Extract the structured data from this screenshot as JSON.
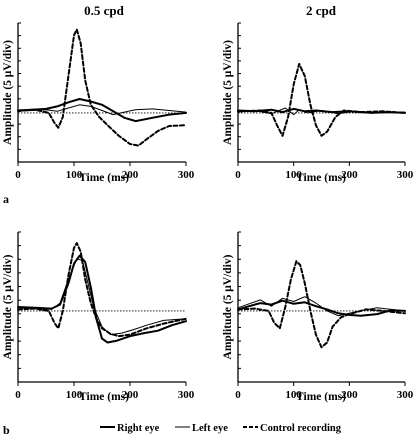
{
  "figure": {
    "panel_letters": [
      "a",
      "b"
    ],
    "legend": [
      {
        "label": "Right eye",
        "color": "#000000",
        "dash": "solid",
        "weight": "thick"
      },
      {
        "label": "Left eye",
        "color": "#000000",
        "dash": "solid",
        "weight": "thin"
      },
      {
        "label": "Control recording",
        "color": "#000000",
        "dash": "dashed",
        "weight": "thick"
      }
    ]
  },
  "chart_data": [
    {
      "type": "line",
      "panel": "a",
      "title": "0.5 cpd",
      "xlabel": "Time (ms)",
      "ylabel": "Amplitude (5 μV/div)",
      "xlim": [
        0,
        300
      ],
      "ylim": [
        -6,
        11
      ],
      "xticks": [
        0,
        100,
        200,
        300
      ],
      "baseline": 0,
      "series": [
        {
          "name": "Right eye",
          "x": [
            0,
            25,
            50,
            70,
            90,
            110,
            130,
            150,
            170,
            190,
            210,
            240,
            270,
            300
          ],
          "y": [
            0.3,
            0.4,
            0.5,
            0.8,
            1.3,
            1.7,
            1.4,
            1.0,
            0.2,
            -0.6,
            -1.0,
            -0.6,
            -0.2,
            0.0
          ]
        },
        {
          "name": "Left eye",
          "x": [
            0,
            25,
            50,
            70,
            90,
            110,
            130,
            150,
            170,
            190,
            210,
            240,
            270,
            300
          ],
          "y": [
            0.2,
            0.3,
            0.4,
            0.2,
            0.6,
            1.0,
            0.8,
            0.3,
            -0.2,
            0.1,
            0.4,
            0.5,
            0.3,
            0.1
          ]
        },
        {
          "name": "Control recording",
          "x": [
            0,
            30,
            55,
            65,
            72,
            80,
            90,
            100,
            105,
            112,
            120,
            130,
            145,
            160,
            180,
            200,
            215,
            230,
            250,
            270,
            300
          ],
          "y": [
            0.3,
            0.4,
            0.0,
            -1.2,
            -1.8,
            -0.5,
            4.5,
            9.5,
            10.2,
            8.5,
            4.0,
            1.0,
            -0.5,
            -1.5,
            -2.8,
            -3.8,
            -4.0,
            -3.2,
            -2.2,
            -1.6,
            -1.5
          ]
        }
      ]
    },
    {
      "type": "line",
      "panel": "a",
      "title": "2 cpd",
      "xlabel": "Time (ms)",
      "ylabel": "Amplitude (5 μV/div)",
      "xlim": [
        0,
        300
      ],
      "ylim": [
        -6,
        11
      ],
      "xticks": [
        0,
        100,
        200,
        300
      ],
      "baseline": 0,
      "series": [
        {
          "name": "Right eye",
          "x": [
            0,
            30,
            60,
            80,
            100,
            120,
            140,
            170,
            200,
            240,
            270,
            300
          ],
          "y": [
            0.3,
            0.2,
            0.4,
            0.1,
            0.5,
            0.2,
            0.3,
            0.1,
            0.2,
            0.0,
            0.1,
            0.0
          ]
        },
        {
          "name": "Left eye",
          "x": [
            0,
            30,
            60,
            85,
            100,
            110,
            125,
            150,
            180,
            210,
            250,
            300
          ],
          "y": [
            0.1,
            0.3,
            -0.1,
            0.6,
            -0.2,
            0.4,
            0.0,
            0.3,
            -0.1,
            0.2,
            0.0,
            0.1
          ]
        },
        {
          "name": "Control recording",
          "x": [
            0,
            40,
            60,
            70,
            80,
            90,
            100,
            110,
            120,
            130,
            140,
            150,
            160,
            175,
            190,
            220,
            260,
            300
          ],
          "y": [
            0.2,
            0.3,
            0.0,
            -1.5,
            -2.8,
            -0.5,
            3.5,
            6.0,
            4.5,
            1.0,
            -1.5,
            -2.8,
            -2.3,
            -0.5,
            0.3,
            0.1,
            0.2,
            0.0
          ]
        }
      ]
    },
    {
      "type": "line",
      "panel": "b",
      "title": "",
      "xlabel": "Time (ms)",
      "ylabel": "Amplitude (5 μV/div)",
      "xlim": [
        0,
        300
      ],
      "ylim": [
        -9,
        10
      ],
      "xticks": [
        0,
        100,
        200,
        300
      ],
      "baseline": 0,
      "series": [
        {
          "name": "Right eye",
          "x": [
            0,
            30,
            60,
            75,
            90,
            100,
            110,
            120,
            130,
            140,
            150,
            160,
            175,
            200,
            225,
            250,
            275,
            300
          ],
          "y": [
            0.5,
            0.4,
            0.3,
            0.8,
            3.5,
            6.0,
            7.0,
            6.2,
            3.0,
            -1.0,
            -3.5,
            -4.0,
            -3.8,
            -3.2,
            -2.8,
            -2.5,
            -1.8,
            -1.3
          ]
        },
        {
          "name": "Left eye",
          "x": [
            0,
            30,
            60,
            75,
            90,
            105,
            115,
            125,
            135,
            150,
            165,
            185,
            205,
            230,
            260,
            300
          ],
          "y": [
            0.4,
            0.3,
            0.2,
            1.0,
            4.0,
            6.6,
            6.4,
            3.5,
            0.5,
            -2.0,
            -3.0,
            -2.8,
            -2.4,
            -1.8,
            -1.2,
            -1.0
          ]
        },
        {
          "name": "Control recording",
          "x": [
            0,
            30,
            55,
            65,
            72,
            80,
            90,
            100,
            105,
            112,
            120,
            130,
            140,
            150,
            165,
            180,
            200,
            230,
            260,
            300
          ],
          "y": [
            0.2,
            0.3,
            0.0,
            -1.5,
            -2.2,
            0.0,
            4.5,
            8.0,
            8.6,
            7.5,
            4.0,
            1.0,
            -1.0,
            -2.2,
            -2.9,
            -3.2,
            -3.0,
            -2.2,
            -1.6,
            -1.0
          ]
        }
      ]
    },
    {
      "type": "line",
      "panel": "b",
      "title": "",
      "xlabel": "Time (ms)",
      "ylabel": "Amplitude (5 μV/div)",
      "xlim": [
        0,
        300
      ],
      "ylim": [
        -9,
        10
      ],
      "xticks": [
        0,
        100,
        200,
        300
      ],
      "baseline": 0,
      "series": [
        {
          "name": "Right eye",
          "x": [
            0,
            20,
            40,
            60,
            80,
            100,
            120,
            140,
            160,
            180,
            200,
            220,
            250,
            275,
            300
          ],
          "y": [
            0.2,
            0.6,
            1.0,
            0.8,
            1.3,
            0.9,
            1.1,
            0.6,
            0.2,
            -0.3,
            -0.5,
            -0.6,
            -0.4,
            0.1,
            0.0
          ]
        },
        {
          "name": "Left eye",
          "x": [
            0,
            20,
            40,
            60,
            80,
            100,
            120,
            140,
            160,
            180,
            200,
            220,
            250,
            275,
            300
          ],
          "y": [
            0.4,
            0.9,
            1.4,
            0.6,
            1.6,
            1.2,
            1.8,
            1.0,
            0.0,
            -0.6,
            -0.3,
            0.0,
            0.4,
            0.2,
            0.0
          ]
        },
        {
          "name": "Control recording",
          "x": [
            0,
            30,
            55,
            65,
            75,
            85,
            95,
            105,
            112,
            120,
            130,
            140,
            150,
            160,
            170,
            185,
            200,
            230,
            260,
            300
          ],
          "y": [
            0.2,
            0.3,
            0.0,
            -1.5,
            -2.2,
            0.5,
            4.0,
            6.3,
            5.8,
            3.5,
            0.0,
            -3.0,
            -4.6,
            -4.0,
            -2.0,
            -0.8,
            -0.4,
            0.2,
            0.0,
            -0.3
          ]
        }
      ]
    }
  ]
}
